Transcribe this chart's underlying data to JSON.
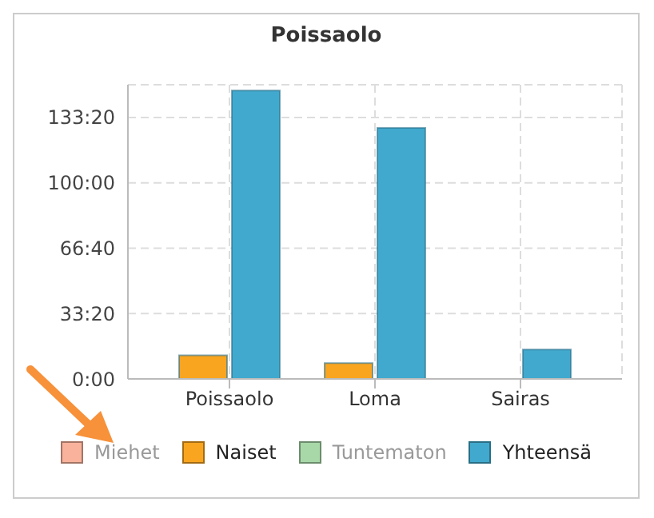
{
  "chart_data": {
    "type": "bar",
    "title": "Poissaolo",
    "categories": [
      "Poissaolo",
      "Loma",
      "Sairas"
    ],
    "series": [
      {
        "name": "Miehet",
        "color": "#f9b29b",
        "values": [
          null,
          null,
          null
        ]
      },
      {
        "name": "Naiset",
        "color": "#f9a51f",
        "values": [
          12,
          8,
          null
        ]
      },
      {
        "name": "Tuntematon",
        "color": "#a8d8a8",
        "values": [
          null,
          null,
          null
        ]
      },
      {
        "name": "Yhteensä",
        "color": "#41a9cd",
        "values": [
          147,
          128,
          15
        ]
      }
    ],
    "ylim": [
      0,
      150
    ],
    "yticks": [
      {
        "value": 0,
        "label": "0:00"
      },
      {
        "value": 33.3333,
        "label": "33:20"
      },
      {
        "value": 66.6667,
        "label": "66:40"
      },
      {
        "value": 100,
        "label": "100:00"
      },
      {
        "value": 133.3333,
        "label": "133:20"
      }
    ],
    "grid": true,
    "legend": "bottom"
  }
}
